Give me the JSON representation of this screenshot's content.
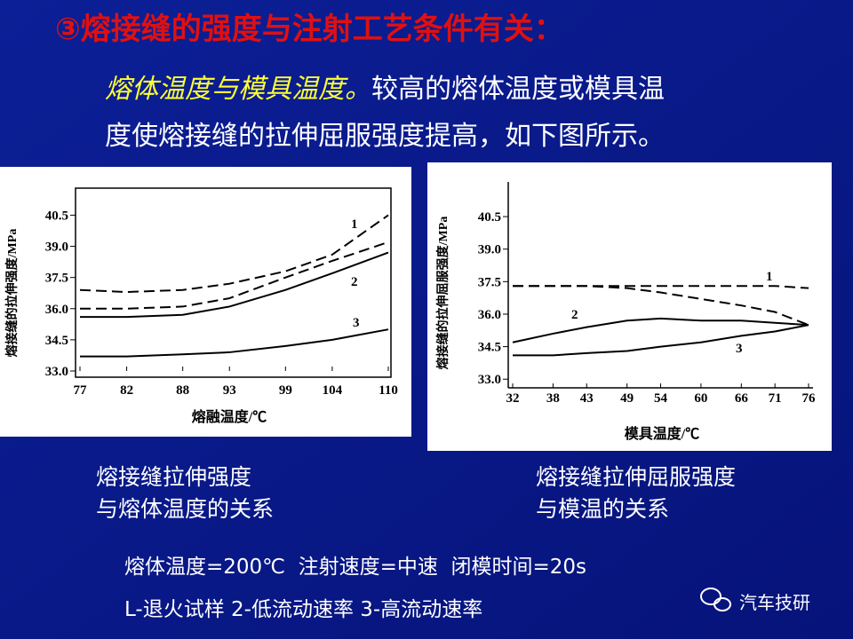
{
  "title": "③熔接缝的强度与注射工艺条件有关：",
  "lead": {
    "emphasis": "熔体温度与模具温度。",
    "text_1": "较高的熔体温度或模具温",
    "text_2": "度使熔接缝的拉伸屈服强度提高，如下图所示。"
  },
  "captions": [
    [
      "熔接缝拉伸强度",
      "与熔体温度的关系"
    ],
    [
      "熔接缝拉伸屈服强度",
      "与模温的关系"
    ]
  ],
  "conditions": "熔体温度=200℃  注射速度=中速  闭模时间=20s",
  "legend_note": "L-退火试样 2-低流动速率 3-高流动速率",
  "watermark": "汽车技研",
  "chart_data": [
    {
      "type": "line",
      "x_label": "熔融温度/℃",
      "y_label": "熔接缝的拉伸强度/MPa",
      "x": [
        77,
        82,
        88,
        93,
        99,
        104,
        110
      ],
      "xlim": [
        77,
        110
      ],
      "xticks": [
        77,
        82,
        88,
        93,
        99,
        104,
        110
      ],
      "ylim": [
        33,
        41.8
      ],
      "yticks": [
        {
          "value": 33,
          "label": "33.0"
        },
        34.5,
        {
          "value": 36,
          "label": "36.0"
        },
        37.5,
        {
          "value": 39,
          "label": "39.0"
        },
        40.5
      ],
      "series": [
        {
          "name": "1",
          "color": "#000000",
          "style": "dashed",
          "values": [
            36.9,
            36.8,
            36.9,
            37.2,
            37.8,
            38.6,
            40.5
          ]
        },
        {
          "color": "#000000",
          "style": "dashed",
          "values": [
            36.0,
            36.0,
            36.1,
            36.5,
            37.5,
            38.3,
            39.2
          ]
        },
        {
          "name": "2",
          "color": "#000000",
          "style": "solid",
          "values": [
            35.6,
            35.6,
            35.7,
            36.1,
            36.9,
            37.7,
            38.7
          ]
        },
        {
          "name": "3",
          "color": "#000000",
          "style": "solid",
          "values": [
            33.7,
            33.7,
            33.8,
            33.9,
            34.2,
            34.5,
            35.0
          ]
        }
      ]
    },
    {
      "type": "line",
      "x_label": "模具温度/℃",
      "y_label": "熔接缝的拉伸屈服强度/MPa",
      "x": [
        32,
        38,
        43,
        49,
        54,
        60,
        66,
        71,
        76
      ],
      "xlim": [
        32,
        76
      ],
      "xticks": [
        32,
        38,
        43,
        49,
        54,
        60,
        66,
        71,
        76
      ],
      "ylim": [
        32.6,
        42.1
      ],
      "yticks": [
        {
          "value": 33,
          "label": "33.0"
        },
        34.5,
        {
          "value": 36,
          "label": "36.0"
        },
        37.5,
        {
          "value": 39,
          "label": "39.0"
        },
        40.5
      ],
      "series": [
        {
          "name": "1",
          "color": "#000000",
          "style": "dashed",
          "values": [
            37.3,
            37.3,
            37.3,
            37.3,
            37.3,
            37.3,
            37.3,
            37.3,
            37.2
          ]
        },
        {
          "color": "#000000",
          "style": "dashed",
          "values": [
            37.3,
            37.3,
            37.3,
            37.2,
            37.0,
            36.7,
            36.4,
            36.1,
            35.5
          ]
        },
        {
          "name": "2",
          "color": "#000000",
          "style": "solid",
          "values": [
            34.7,
            35.1,
            35.4,
            35.7,
            35.8,
            35.7,
            35.7,
            35.6,
            35.5
          ]
        },
        {
          "name": "3",
          "color": "#000000",
          "style": "solid",
          "values": [
            34.1,
            34.1,
            34.2,
            34.3,
            34.5,
            34.7,
            35.0,
            35.2,
            35.5
          ]
        }
      ]
    }
  ]
}
